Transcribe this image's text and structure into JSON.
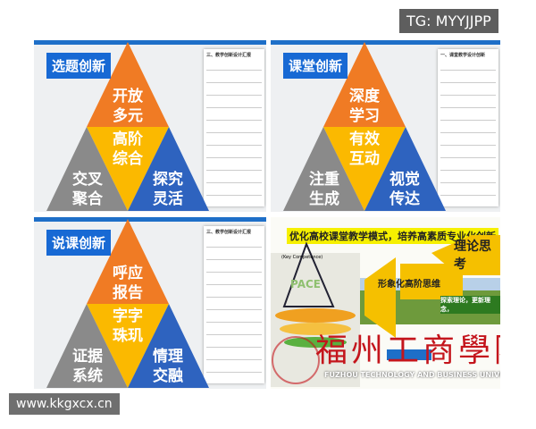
{
  "watermark_top": "TG: MYYJJPP",
  "watermark_bottom": "www.kkgxcx.cn",
  "panels": [
    {
      "title": "选题创新",
      "top": "开放多元",
      "center": "高阶综合",
      "left": "交叉聚合",
      "right": "探究灵活",
      "doc_title": "三、教学创新设计汇报"
    },
    {
      "title": "课堂创新",
      "top": "深度学习",
      "center": "有效互动",
      "left": "注重生成",
      "right": "视觉传达",
      "doc_title": "一、课堂教学设计创新"
    },
    {
      "title": "说课创新",
      "top": "呼应报告",
      "center": "字字珠玑",
      "left": "证据系统",
      "right": "情理交融",
      "doc_title": "三、教学创新设计汇报"
    }
  ],
  "school_panel": {
    "slogan": "优化高校课堂教学模式，培养高素质专业化创新",
    "theory": "理论思考",
    "arrow_text": "形象化高阶思维",
    "pace": "PACE",
    "key": "(Key Competence)",
    "banner": "探索理论，更新理念，",
    "school_cn": "福州工商學院",
    "school_en": "FUZHOU TECHNOLOGY AND BUSINESS UNIVERSITY"
  },
  "colors": {
    "orange": "#f07b24",
    "yellow": "#fbb900",
    "gray": "#8a8a8a",
    "blue": "#2e63bf",
    "label": "#1769d4"
  }
}
